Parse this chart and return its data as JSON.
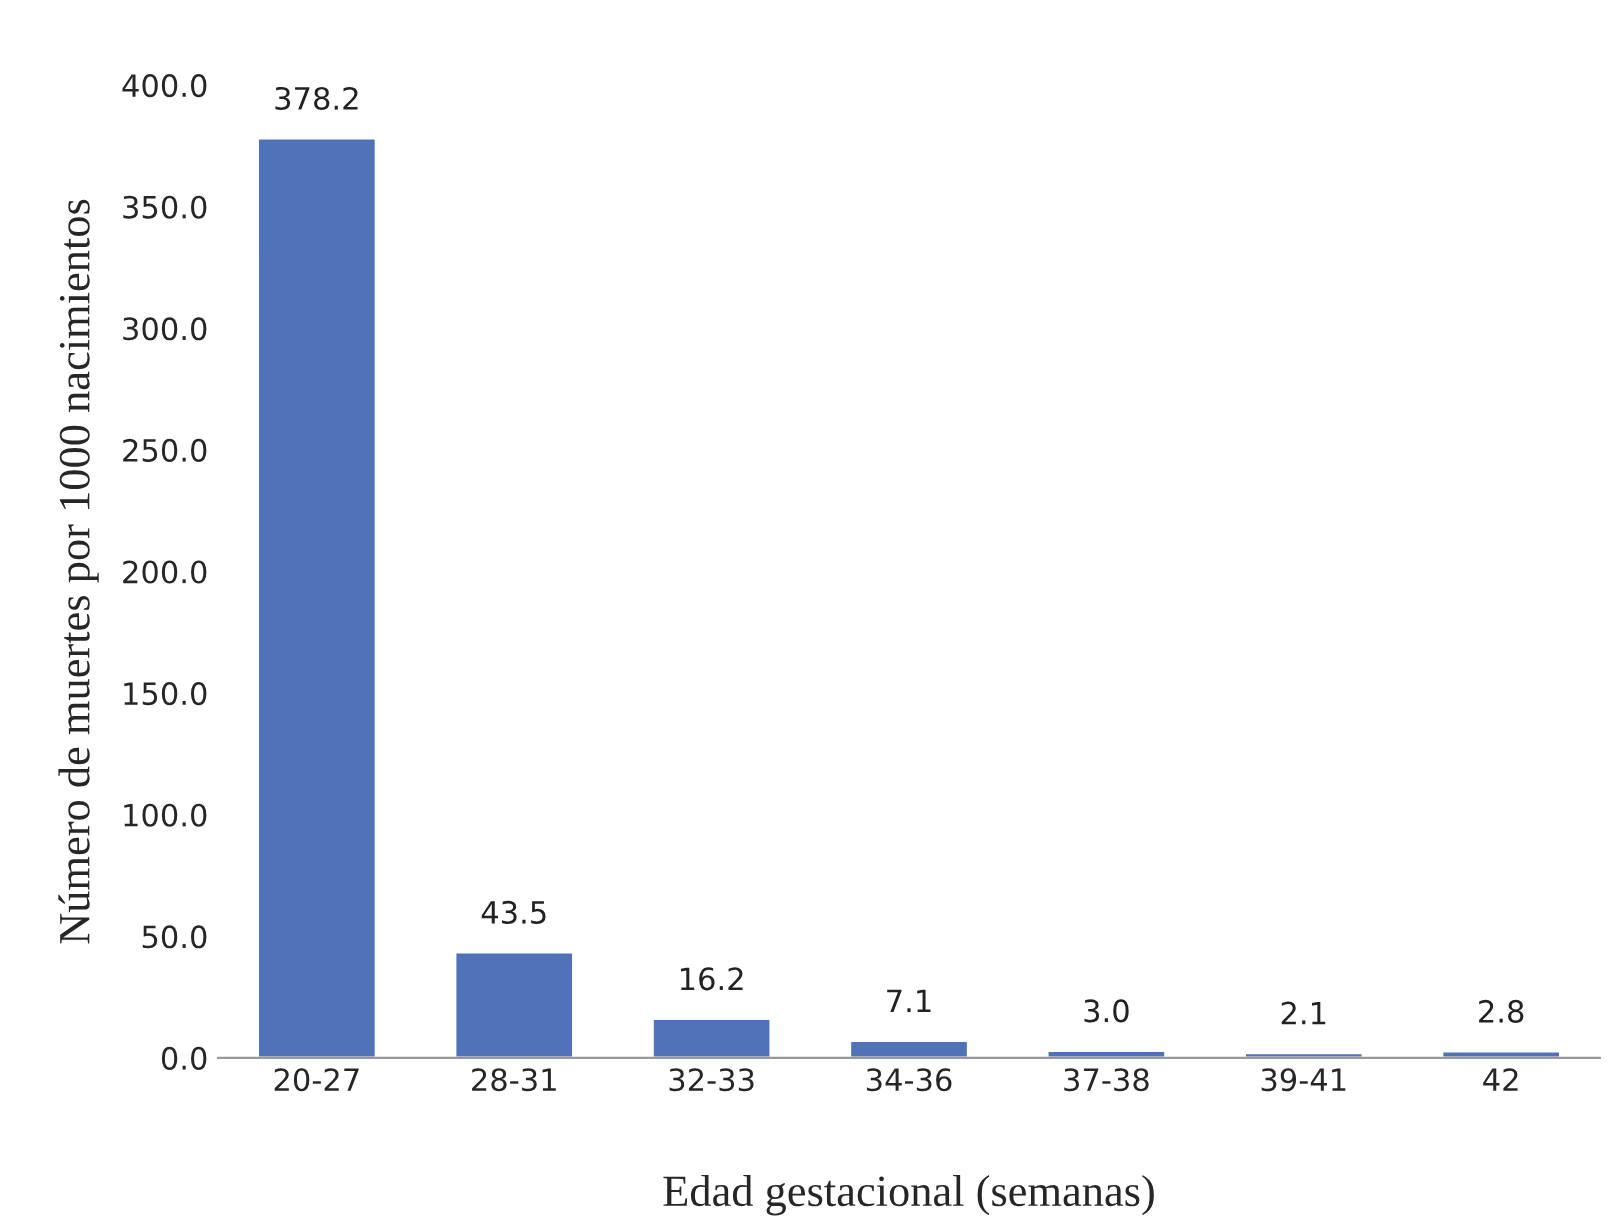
{
  "chart_data": {
    "type": "bar",
    "xlabel": "Edad gestacional (semanas)",
    "ylabel": "Número de muertes por 1000 nacimientos",
    "categories": [
      "20-27",
      "28-31",
      "32-33",
      "34-36",
      "37-38",
      "39-41",
      "42"
    ],
    "values": [
      378.2,
      43.5,
      16.2,
      7.1,
      3.0,
      2.1,
      2.8
    ],
    "value_labels": [
      "378.2",
      "43.5",
      "16.2",
      "7.1",
      "3.0",
      "2.1",
      "2.8"
    ],
    "color": "#4f72b8",
    "ylim": [
      0,
      400
    ],
    "yticks": [
      {
        "value": 0,
        "label": "0.0"
      },
      {
        "value": 50,
        "label": "50.0"
      },
      {
        "value": 100,
        "label": "100.0"
      },
      {
        "value": 150,
        "label": "150.0"
      },
      {
        "value": 200,
        "label": "200.0"
      },
      {
        "value": 250,
        "label": "250.0"
      },
      {
        "value": 300,
        "label": "300.0"
      },
      {
        "value": 350,
        "label": "350.0"
      },
      {
        "value": 400,
        "label": "400.0"
      }
    ],
    "grid": false,
    "legend": false
  }
}
